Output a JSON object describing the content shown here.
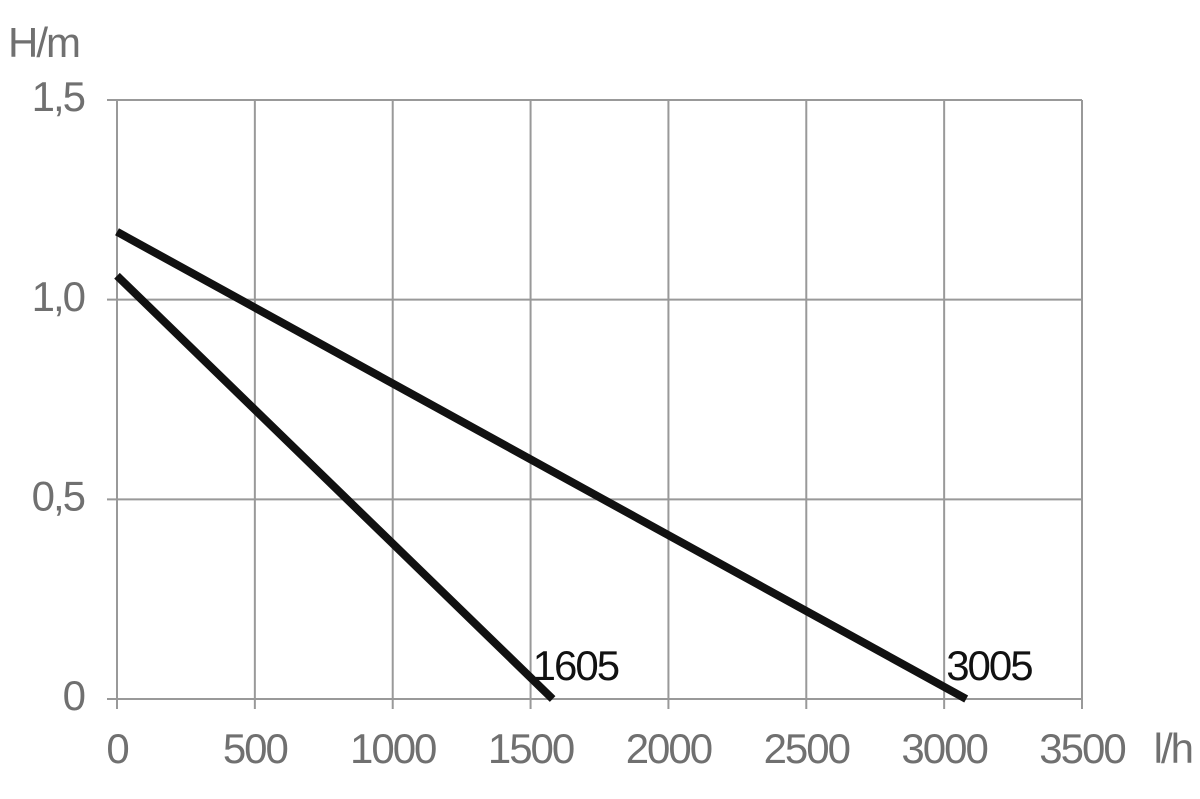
{
  "chart_data": {
    "type": "line",
    "y_label": "H/m",
    "x_label": "l/h",
    "xlim": [
      0,
      3500
    ],
    "xticks": [
      0,
      500,
      1000,
      1500,
      2000,
      2500,
      3000,
      3500
    ],
    "ylim": [
      0,
      1.5
    ],
    "yticks": [
      0,
      {
        "value": 0.5,
        "label": "0,5"
      },
      {
        "value": 1.0,
        "label": "1,0"
      },
      {
        "value": 1.5,
        "label": "1,5"
      }
    ],
    "grid": true,
    "series": [
      {
        "name": "1605",
        "color": "#111111",
        "x": [
          0,
          1580
        ],
        "values": [
          1.06,
          0
        ]
      },
      {
        "name": "3005",
        "color": "#111111",
        "x": [
          0,
          3080
        ],
        "values": [
          1.17,
          0
        ]
      }
    ]
  }
}
